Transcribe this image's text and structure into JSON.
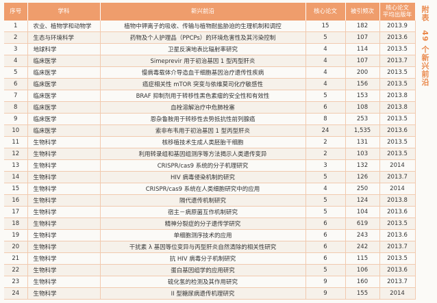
{
  "side_title": "附表　49 个新兴前沿",
  "table": {
    "header": [
      "序号",
      "学科",
      "新兴前沿",
      "核心论文",
      "被引频次",
      "核心论文\n平均出版年"
    ],
    "rows": [
      [
        "1",
        "农业、植物学和动物学",
        "植物中钾离子的吸收、传输与植物耐盐胁迫的生理机制和调控",
        "15",
        "182",
        "2013.9"
      ],
      [
        "2",
        "生态与环境科学",
        "药物及个人护理品（PPCPs）的环境危害性及其污染控制",
        "5",
        "107",
        "2013.6"
      ],
      [
        "3",
        "地球科学",
        "卫星反演地表比辐射率研究",
        "4",
        "114",
        "2013.5"
      ],
      [
        "4",
        "临床医学",
        "Simeprevir 用于初治基因 1 型丙型肝炎",
        "4",
        "107",
        "2013.7"
      ],
      [
        "5",
        "临床医学",
        "慢病毒载体介导造血干细胞基因治疗遗传性疾病",
        "4",
        "200",
        "2013.5"
      ],
      [
        "6",
        "临床医学",
        "癌症相关性 mTOR 突变与依维莫司化疗敏感性",
        "4",
        "156",
        "2013.5"
      ],
      [
        "7",
        "临床医学",
        "BRAF 抑制剂用于转移性黑色素瘤的安全性和有效性",
        "5",
        "153",
        "2013.8"
      ],
      [
        "8",
        "临床医学",
        "血栓溶解治疗中危肺栓塞",
        "6",
        "108",
        "2013.8"
      ],
      [
        "9",
        "临床医学",
        "恩杂鲁胺用于转移性去势抵抗性前列腺癌",
        "8",
        "253",
        "2013.5"
      ],
      [
        "10",
        "临床医学",
        "索非布韦用于初治基因 1 型丙型肝炎",
        "24",
        "1,535",
        "2013.6"
      ],
      [
        "11",
        "生物科学",
        "核移植技术生成人类胚胎干细胞",
        "2",
        "131",
        "2013.5"
      ],
      [
        "12",
        "生物科学",
        "利用转录组和基因组测序等方法揭示人类遗传变异",
        "2",
        "103",
        "2013.5"
      ],
      [
        "13",
        "生物科学",
        "CRISPR/cas9 系统的分子机理研究",
        "3",
        "132",
        "2014"
      ],
      [
        "14",
        "生物科学",
        "HIV 病毒侵染机制的研究",
        "5",
        "126",
        "2013.7"
      ],
      [
        "15",
        "生物科学",
        "CRISPR/cas9 系统在人类细胞研究中的应用",
        "4",
        "250",
        "2014"
      ],
      [
        "16",
        "生物科学",
        "隔代遗传机制研究",
        "5",
        "124",
        "2013.8"
      ],
      [
        "17",
        "生物科学",
        "宿主－病原菌互作机制研究",
        "5",
        "104",
        "2013.6"
      ],
      [
        "18",
        "生物科学",
        "精神分裂症的分子遗传学研究",
        "6",
        "619",
        "2013.5"
      ],
      [
        "19",
        "生物科学",
        "单细胞测序技术的应用",
        "6",
        "243",
        "2013.6"
      ],
      [
        "20",
        "生物科学",
        "干扰素 λ 基因等位变异与丙型肝炎自然清除的相关性研究",
        "6",
        "242",
        "2013.7"
      ],
      [
        "21",
        "生物科学",
        "抗 HIV 病毒分子机制研究",
        "6",
        "115",
        "2013.5"
      ],
      [
        "22",
        "生物科学",
        "蛋白基因组学的应用研究",
        "5",
        "106",
        "2013.6"
      ],
      [
        "23",
        "生物科学",
        "硫化氢的检测及其作用研究",
        "9",
        "160",
        "2013.7"
      ],
      [
        "24",
        "生物科学",
        "II 型糖尿病遗传机理研究",
        "9",
        "155",
        "2014"
      ]
    ]
  }
}
